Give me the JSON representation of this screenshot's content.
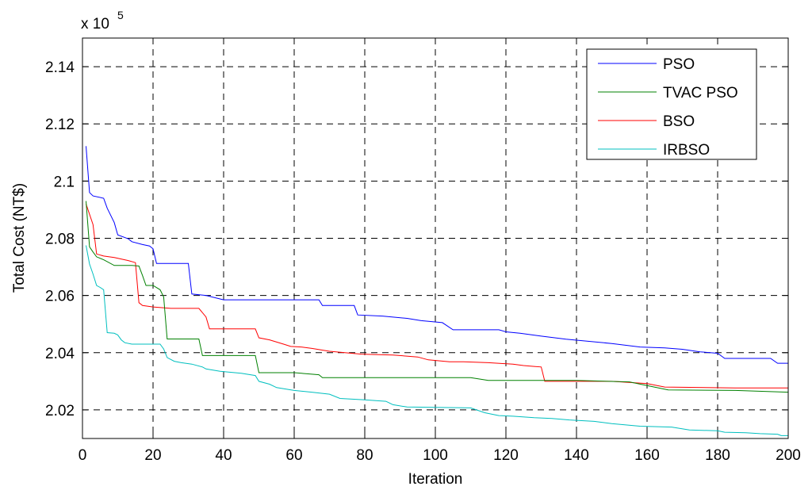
{
  "chart_data": {
    "type": "line",
    "title": "",
    "xlabel": "Iteration",
    "ylabel": "Total Cost (NT$)",
    "y_multiplier_label": "x 10",
    "y_multiplier_exponent": "5",
    "xlim": [
      0,
      200
    ],
    "ylim": [
      2.01,
      2.15
    ],
    "x_ticks": [
      0,
      20,
      40,
      60,
      80,
      100,
      120,
      140,
      160,
      180,
      200
    ],
    "x_tick_labels": [
      "0",
      "20",
      "40",
      "60",
      "80",
      "100",
      "120",
      "140",
      "160",
      "180",
      "200"
    ],
    "y_ticks": [
      2.02,
      2.04,
      2.06,
      2.08,
      2.1,
      2.12,
      2.14
    ],
    "y_tick_labels": [
      "2.02",
      "2.04",
      "2.06",
      "2.08",
      "2.1",
      "2.12",
      "2.14"
    ],
    "grid": true,
    "legend_position": "top-right",
    "series": [
      {
        "name": "PSO",
        "color": "#0000ff",
        "points": [
          [
            1,
            2.1122
          ],
          [
            2,
            2.096
          ],
          [
            3,
            2.0948
          ],
          [
            6,
            2.094
          ],
          [
            7,
            2.0905
          ],
          [
            9,
            2.0855
          ],
          [
            10,
            2.0812
          ],
          [
            13,
            2.0798
          ],
          [
            14,
            2.0788
          ],
          [
            17,
            2.0778
          ],
          [
            19,
            2.0773
          ],
          [
            20,
            2.0763
          ],
          [
            21,
            2.0712
          ],
          [
            30,
            2.0712
          ],
          [
            31,
            2.0605
          ],
          [
            35,
            2.06
          ],
          [
            40,
            2.0585
          ],
          [
            57,
            2.0585
          ],
          [
            67,
            2.0585
          ],
          [
            68,
            2.0565
          ],
          [
            77,
            2.0565
          ],
          [
            78,
            2.0532
          ],
          [
            85,
            2.0528
          ],
          [
            92,
            2.052
          ],
          [
            96,
            2.0512
          ],
          [
            102,
            2.0505
          ],
          [
            105,
            2.048
          ],
          [
            118,
            2.048
          ],
          [
            120,
            2.0473
          ],
          [
            124,
            2.0468
          ],
          [
            130,
            2.0458
          ],
          [
            137,
            2.0447
          ],
          [
            150,
            2.0432
          ],
          [
            158,
            2.042
          ],
          [
            165,
            2.0417
          ],
          [
            170,
            2.0412
          ],
          [
            175,
            2.0403
          ],
          [
            180,
            2.0398
          ],
          [
            182,
            2.038
          ],
          [
            195,
            2.038
          ],
          [
            197,
            2.0363
          ],
          [
            200,
            2.0363
          ]
        ]
      },
      {
        "name": "TVAC PSO",
        "color": "#008000",
        "points": [
          [
            1,
            2.093
          ],
          [
            2,
            2.077
          ],
          [
            3,
            2.0752
          ],
          [
            4,
            2.0735
          ],
          [
            6,
            2.0725
          ],
          [
            9,
            2.0705
          ],
          [
            14,
            2.0705
          ],
          [
            16,
            2.0703
          ],
          [
            17,
            2.067
          ],
          [
            18,
            2.0635
          ],
          [
            20,
            2.0635
          ],
          [
            22,
            2.062
          ],
          [
            23,
            2.0595
          ],
          [
            24,
            2.0448
          ],
          [
            33,
            2.0448
          ],
          [
            34,
            2.039
          ],
          [
            49,
            2.039
          ],
          [
            50,
            2.033
          ],
          [
            60,
            2.033
          ],
          [
            67,
            2.0323
          ],
          [
            68,
            2.0313
          ],
          [
            110,
            2.0313
          ],
          [
            115,
            2.0303
          ],
          [
            140,
            2.0303
          ],
          [
            155,
            2.0298
          ],
          [
            160,
            2.0285
          ],
          [
            166,
            2.027
          ],
          [
            185,
            2.0268
          ],
          [
            200,
            2.0262
          ]
        ]
      },
      {
        "name": "BSO",
        "color": "#ff0000",
        "points": [
          [
            1,
            2.092
          ],
          [
            3,
            2.0848
          ],
          [
            4,
            2.0745
          ],
          [
            6,
            2.0738
          ],
          [
            9,
            2.0733
          ],
          [
            13,
            2.0722
          ],
          [
            15,
            2.0715
          ],
          [
            16,
            2.0575
          ],
          [
            17,
            2.0565
          ],
          [
            20,
            2.056
          ],
          [
            25,
            2.0555
          ],
          [
            33,
            2.0555
          ],
          [
            35,
            2.0525
          ],
          [
            36,
            2.0483
          ],
          [
            49,
            2.0483
          ],
          [
            50,
            2.0452
          ],
          [
            53,
            2.0445
          ],
          [
            57,
            2.043
          ],
          [
            59,
            2.0422
          ],
          [
            62,
            2.042
          ],
          [
            65,
            2.0415
          ],
          [
            70,
            2.0405
          ],
          [
            79,
            2.0395
          ],
          [
            88,
            2.0392
          ],
          [
            95,
            2.0385
          ],
          [
            98,
            2.0375
          ],
          [
            104,
            2.0368
          ],
          [
            108,
            2.0368
          ],
          [
            115,
            2.0365
          ],
          [
            122,
            2.036
          ],
          [
            125,
            2.0355
          ],
          [
            128,
            2.0352
          ],
          [
            130,
            2.035
          ],
          [
            131,
            2.03
          ],
          [
            150,
            2.03
          ],
          [
            160,
            2.0292
          ],
          [
            165,
            2.028
          ],
          [
            185,
            2.0277
          ],
          [
            200,
            2.0277
          ]
        ]
      },
      {
        "name": "IRBSO",
        "color": "#00bfbf",
        "points": [
          [
            1,
            2.0775
          ],
          [
            2,
            2.071
          ],
          [
            3,
            2.0675
          ],
          [
            4,
            2.0635
          ],
          [
            5,
            2.0628
          ],
          [
            6,
            2.062
          ],
          [
            7,
            2.047
          ],
          [
            9,
            2.0468
          ],
          [
            10,
            2.0462
          ],
          [
            11,
            2.0445
          ],
          [
            12,
            2.0435
          ],
          [
            14,
            2.043
          ],
          [
            22,
            2.043
          ],
          [
            23,
            2.0413
          ],
          [
            24,
            2.0383
          ],
          [
            26,
            2.037
          ],
          [
            28,
            2.0365
          ],
          [
            31,
            2.036
          ],
          [
            34,
            2.035
          ],
          [
            35,
            2.0343
          ],
          [
            39,
            2.0335
          ],
          [
            45,
            2.0328
          ],
          [
            49,
            2.032
          ],
          [
            50,
            2.03
          ],
          [
            53,
            2.029
          ],
          [
            55,
            2.0278
          ],
          [
            60,
            2.0268
          ],
          [
            65,
            2.0262
          ],
          [
            70,
            2.0255
          ],
          [
            73,
            2.024
          ],
          [
            80,
            2.0235
          ],
          [
            86,
            2.023
          ],
          [
            88,
            2.0218
          ],
          [
            92,
            2.021
          ],
          [
            110,
            2.0207
          ],
          [
            114,
            2.019
          ],
          [
            118,
            2.018
          ],
          [
            122,
            2.0178
          ],
          [
            128,
            2.0173
          ],
          [
            133,
            2.017
          ],
          [
            138,
            2.0165
          ],
          [
            145,
            2.016
          ],
          [
            150,
            2.0152
          ],
          [
            158,
            2.0143
          ],
          [
            167,
            2.014
          ],
          [
            172,
            2.013
          ],
          [
            180,
            2.0127
          ],
          [
            182,
            2.0122
          ],
          [
            188,
            2.012
          ],
          [
            192,
            2.0117
          ],
          [
            197,
            2.0115
          ],
          [
            198,
            2.011
          ],
          [
            200,
            2.011
          ]
        ]
      }
    ]
  }
}
